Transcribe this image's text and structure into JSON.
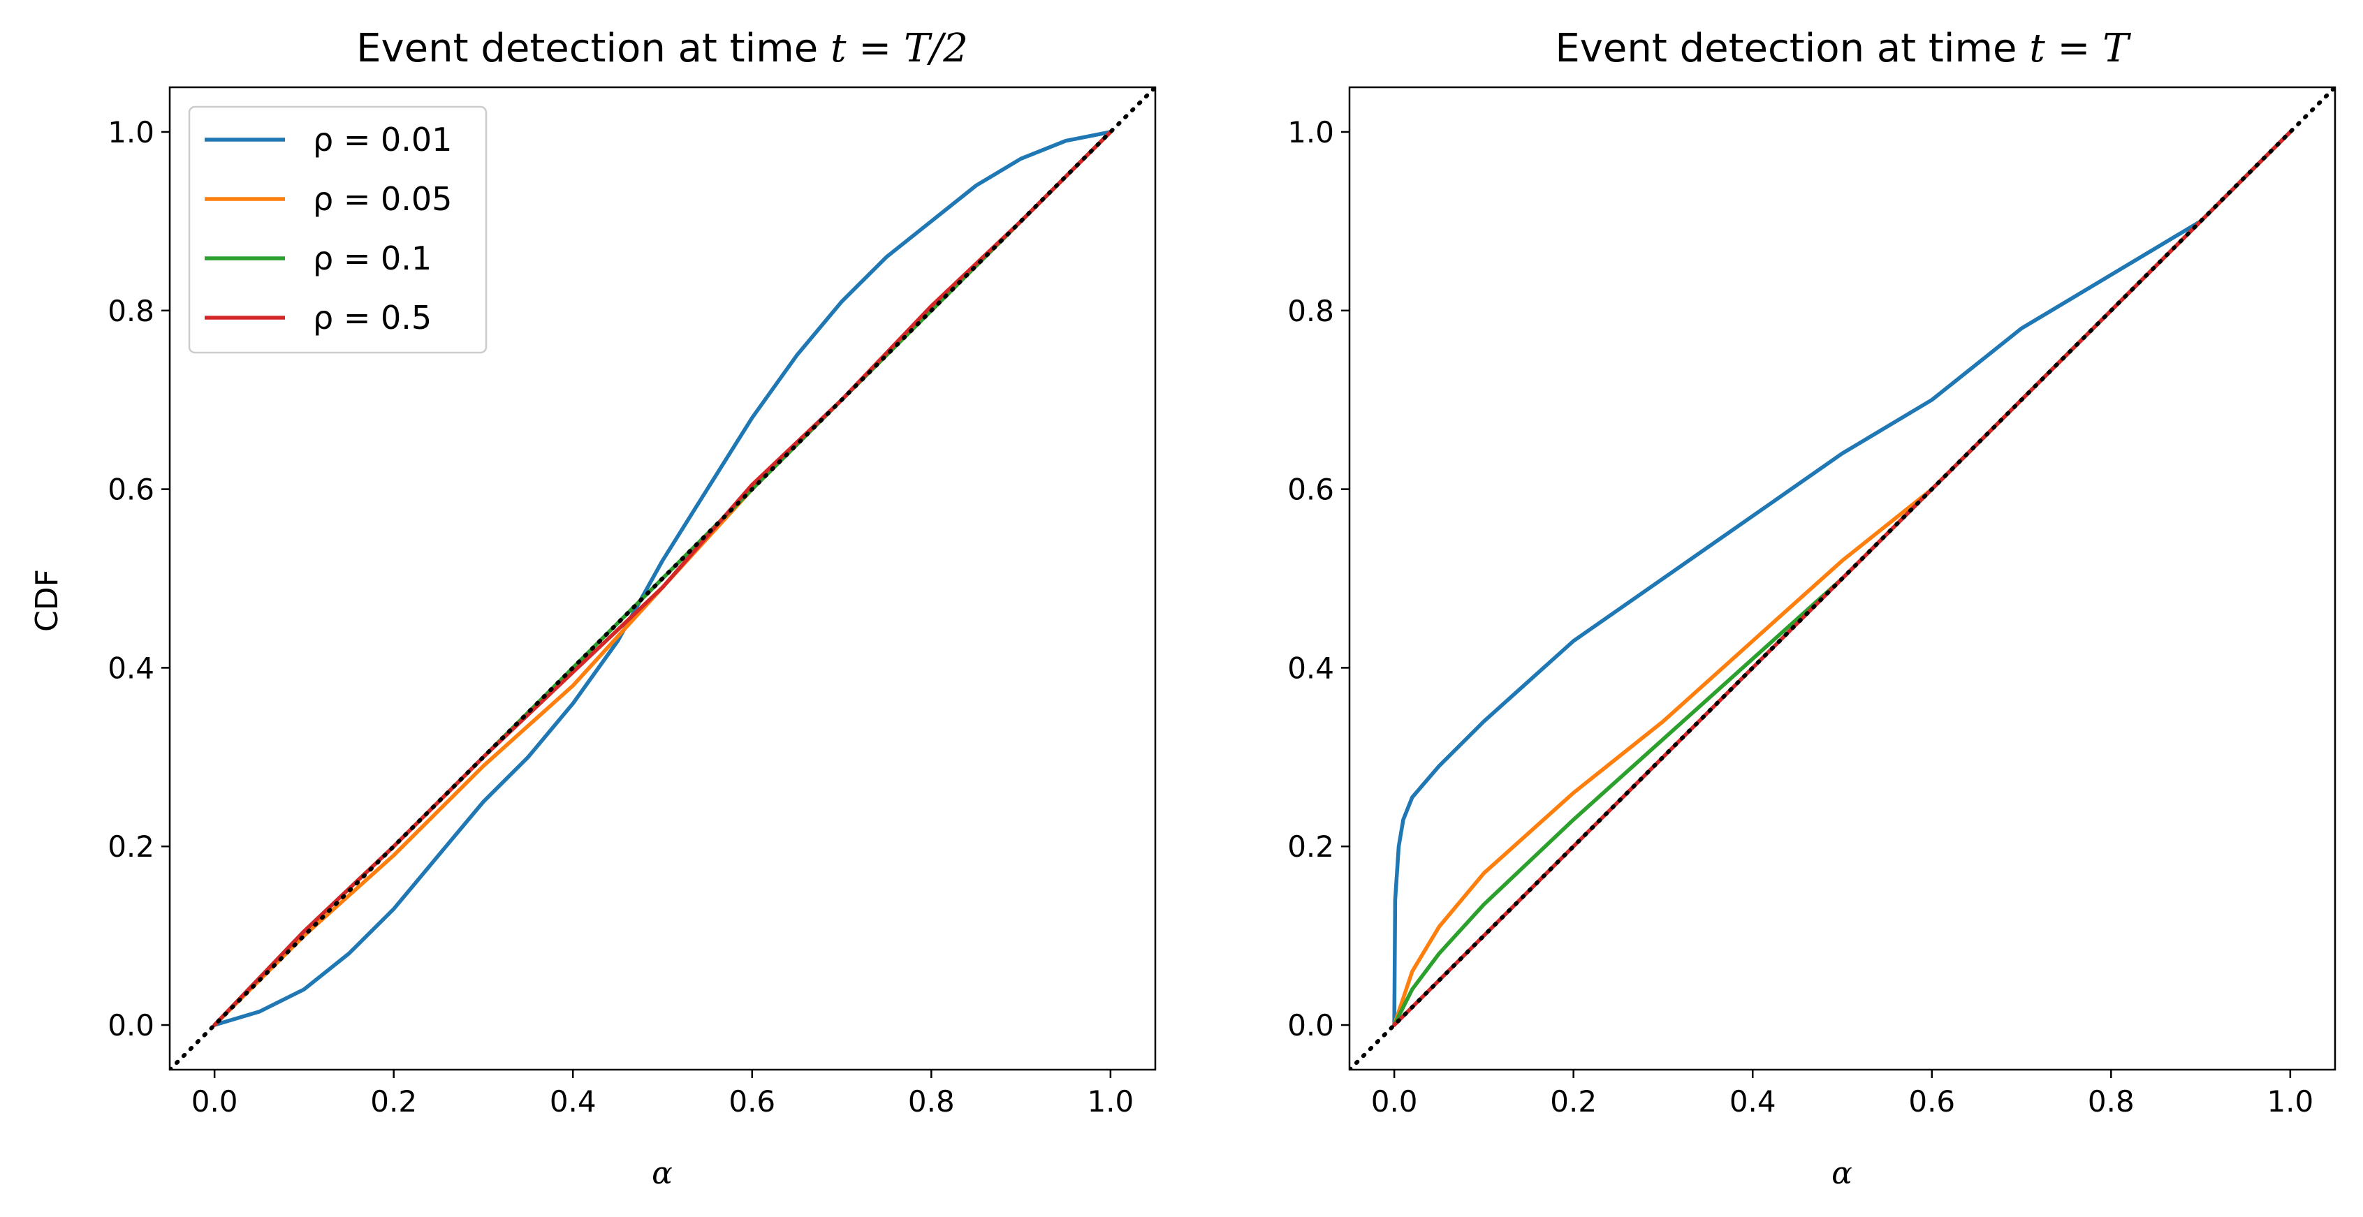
{
  "chart_data": [
    {
      "type": "line",
      "title_prefix": "Event detection at time ",
      "title_math": "t = T/2",
      "xlabel": "α",
      "ylabel": "CDF",
      "xlim": [
        -0.05,
        1.05
      ],
      "ylim": [
        -0.05,
        1.05
      ],
      "xticks": [
        "0.0",
        "0.2",
        "0.4",
        "0.6",
        "0.8",
        "1.0"
      ],
      "yticks": [
        "0.0",
        "0.2",
        "0.4",
        "0.6",
        "0.8",
        "1.0"
      ],
      "legend_position": "top-left",
      "reference_line": {
        "style": "dotted",
        "color": "#000000",
        "x": [
          -0.05,
          1.05
        ],
        "y": [
          -0.05,
          1.05
        ]
      },
      "series": [
        {
          "name": "ρ = 0.01",
          "color": "#1f77b4",
          "x": [
            0,
            0.05,
            0.1,
            0.15,
            0.2,
            0.25,
            0.3,
            0.35,
            0.4,
            0.45,
            0.5,
            0.55,
            0.6,
            0.65,
            0.7,
            0.75,
            0.8,
            0.85,
            0.9,
            0.95,
            1.0
          ],
          "y": [
            0,
            0.015,
            0.04,
            0.08,
            0.13,
            0.19,
            0.25,
            0.3,
            0.36,
            0.43,
            0.52,
            0.6,
            0.68,
            0.75,
            0.81,
            0.86,
            0.9,
            0.94,
            0.97,
            0.99,
            1.0
          ]
        },
        {
          "name": "ρ = 0.05",
          "color": "#ff7f0e",
          "x": [
            0,
            0.1,
            0.2,
            0.3,
            0.4,
            0.5,
            0.6,
            0.7,
            0.8,
            0.9,
            1.0
          ],
          "y": [
            0,
            0.1,
            0.19,
            0.29,
            0.38,
            0.49,
            0.6,
            0.7,
            0.8,
            0.9,
            1.0
          ]
        },
        {
          "name": "ρ = 0.1",
          "color": "#2ca02c",
          "x": [
            0,
            0.1,
            0.2,
            0.3,
            0.4,
            0.5,
            0.6,
            0.7,
            0.8,
            0.9,
            1.0
          ],
          "y": [
            0,
            0.105,
            0.2,
            0.3,
            0.4,
            0.5,
            0.6,
            0.7,
            0.8,
            0.9,
            1.0
          ]
        },
        {
          "name": "ρ = 0.5",
          "color": "#d62728",
          "x": [
            0,
            0.1,
            0.2,
            0.3,
            0.4,
            0.5,
            0.6,
            0.7,
            0.8,
            0.9,
            1.0
          ],
          "y": [
            0,
            0.105,
            0.2,
            0.3,
            0.395,
            0.49,
            0.605,
            0.7,
            0.805,
            0.9,
            1.0
          ]
        }
      ]
    },
    {
      "type": "line",
      "title_prefix": "Event detection at time ",
      "title_math": "t = T",
      "xlabel": "α",
      "ylabel": "",
      "xlim": [
        -0.05,
        1.05
      ],
      "ylim": [
        -0.05,
        1.05
      ],
      "xticks": [
        "0.0",
        "0.2",
        "0.4",
        "0.6",
        "0.8",
        "1.0"
      ],
      "yticks": [
        "0.0",
        "0.2",
        "0.4",
        "0.6",
        "0.8",
        "1.0"
      ],
      "reference_line": {
        "style": "dotted",
        "color": "#000000",
        "x": [
          -0.05,
          1.05
        ],
        "y": [
          -0.05,
          1.05
        ]
      },
      "series": [
        {
          "name": "ρ = 0.01",
          "color": "#1f77b4",
          "x": [
            0,
            0.001,
            0.005,
            0.01,
            0.02,
            0.05,
            0.1,
            0.2,
            0.3,
            0.4,
            0.5,
            0.6,
            0.7,
            0.8,
            0.9,
            1.0
          ],
          "y": [
            0,
            0.14,
            0.2,
            0.23,
            0.255,
            0.29,
            0.34,
            0.43,
            0.5,
            0.57,
            0.64,
            0.7,
            0.78,
            0.84,
            0.9,
            1.0
          ]
        },
        {
          "name": "ρ = 0.05",
          "color": "#ff7f0e",
          "x": [
            0,
            0.02,
            0.05,
            0.1,
            0.2,
            0.3,
            0.4,
            0.5,
            0.6,
            0.7,
            0.8,
            0.9,
            1.0
          ],
          "y": [
            0,
            0.06,
            0.11,
            0.17,
            0.26,
            0.34,
            0.43,
            0.52,
            0.6,
            0.7,
            0.8,
            0.9,
            1.0
          ]
        },
        {
          "name": "ρ = 0.1",
          "color": "#2ca02c",
          "x": [
            0,
            0.02,
            0.05,
            0.1,
            0.2,
            0.3,
            0.4,
            0.5,
            0.6,
            0.7,
            0.8,
            0.9,
            1.0
          ],
          "y": [
            0,
            0.04,
            0.08,
            0.135,
            0.23,
            0.32,
            0.41,
            0.5,
            0.6,
            0.7,
            0.8,
            0.9,
            1.0
          ]
        },
        {
          "name": "ρ = 0.5",
          "color": "#d62728",
          "x": [
            0,
            0.1,
            0.2,
            0.3,
            0.4,
            0.5,
            0.6,
            0.7,
            0.8,
            0.9,
            1.0
          ],
          "y": [
            0,
            0.1,
            0.2,
            0.3,
            0.4,
            0.5,
            0.6,
            0.7,
            0.8,
            0.9,
            1.0
          ]
        }
      ]
    }
  ]
}
